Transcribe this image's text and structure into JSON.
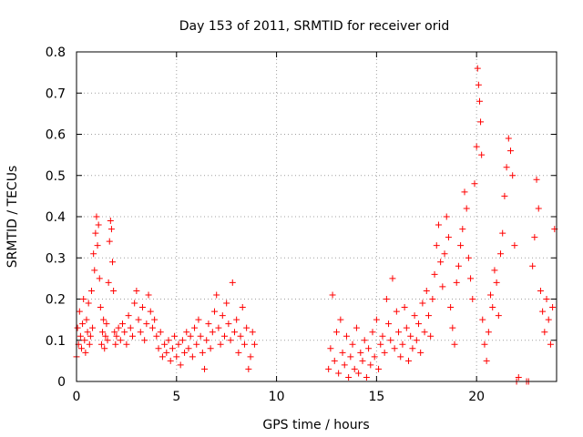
{
  "chart_data": {
    "type": "scatter",
    "title": "Day 153 of 2011, SRMTID for receiver orid",
    "xlabel": "GPS time / hours",
    "ylabel": "SRMTID / TECUs",
    "xlim": [
      0,
      24
    ],
    "ylim": [
      0,
      0.8
    ],
    "x_ticks": [
      0,
      5,
      10,
      15,
      20
    ],
    "y_ticks": [
      0,
      0.1,
      0.2,
      0.3,
      0.4,
      0.5,
      0.6,
      0.7,
      0.8
    ],
    "x_tick_labels": [
      "0",
      "5",
      "10",
      "15",
      "20"
    ],
    "y_tick_labels": [
      "0",
      "0.1",
      "0.2",
      "0.3",
      "0.4",
      "0.5",
      "0.6",
      "0.7",
      "0.8"
    ],
    "grid": true,
    "marker": "+",
    "color": "#ff0000",
    "series": [
      {
        "name": "SRMTID",
        "points": [
          [
            0.0,
            0.06
          ],
          [
            0.05,
            0.13
          ],
          [
            0.1,
            0.09
          ],
          [
            0.15,
            0.17
          ],
          [
            0.2,
            0.11
          ],
          [
            0.25,
            0.08
          ],
          [
            0.3,
            0.14
          ],
          [
            0.35,
            0.2
          ],
          [
            0.4,
            0.1
          ],
          [
            0.45,
            0.07
          ],
          [
            0.5,
            0.15
          ],
          [
            0.55,
            0.12
          ],
          [
            0.6,
            0.19
          ],
          [
            0.65,
            0.09
          ],
          [
            0.7,
            0.11
          ],
          [
            0.75,
            0.22
          ],
          [
            0.8,
            0.13
          ],
          [
            0.85,
            0.31
          ],
          [
            0.9,
            0.27
          ],
          [
            0.95,
            0.36
          ],
          [
            1.0,
            0.4
          ],
          [
            1.05,
            0.33
          ],
          [
            1.1,
            0.38
          ],
          [
            1.15,
            0.25
          ],
          [
            1.2,
            0.18
          ],
          [
            1.25,
            0.09
          ],
          [
            1.3,
            0.12
          ],
          [
            1.35,
            0.15
          ],
          [
            1.4,
            0.08
          ],
          [
            1.45,
            0.11
          ],
          [
            1.5,
            0.14
          ],
          [
            1.55,
            0.1
          ],
          [
            1.6,
            0.24
          ],
          [
            1.65,
            0.34
          ],
          [
            1.7,
            0.39
          ],
          [
            1.75,
            0.37
          ],
          [
            1.8,
            0.29
          ],
          [
            1.85,
            0.22
          ],
          [
            1.9,
            0.12
          ],
          [
            1.95,
            0.09
          ],
          [
            2.0,
            0.11
          ],
          [
            2.1,
            0.13
          ],
          [
            2.2,
            0.1
          ],
          [
            2.3,
            0.14
          ],
          [
            2.4,
            0.12
          ],
          [
            2.5,
            0.09
          ],
          [
            2.6,
            0.16
          ],
          [
            2.7,
            0.13
          ],
          [
            2.8,
            0.11
          ],
          [
            2.9,
            0.19
          ],
          [
            3.0,
            0.22
          ],
          [
            3.1,
            0.15
          ],
          [
            3.2,
            0.12
          ],
          [
            3.3,
            0.18
          ],
          [
            3.4,
            0.1
          ],
          [
            3.5,
            0.14
          ],
          [
            3.6,
            0.21
          ],
          [
            3.7,
            0.17
          ],
          [
            3.8,
            0.13
          ],
          [
            3.9,
            0.15
          ],
          [
            4.0,
            0.11
          ],
          [
            4.1,
            0.08
          ],
          [
            4.2,
            0.12
          ],
          [
            4.3,
            0.06
          ],
          [
            4.4,
            0.09
          ],
          [
            4.5,
            0.07
          ],
          [
            4.6,
            0.1
          ],
          [
            4.7,
            0.05
          ],
          [
            4.8,
            0.08
          ],
          [
            4.9,
            0.11
          ],
          [
            5.0,
            0.06
          ],
          [
            5.1,
            0.09
          ],
          [
            5.2,
            0.04
          ],
          [
            5.3,
            0.1
          ],
          [
            5.4,
            0.07
          ],
          [
            5.5,
            0.12
          ],
          [
            5.6,
            0.08
          ],
          [
            5.7,
            0.11
          ],
          [
            5.8,
            0.06
          ],
          [
            5.9,
            0.13
          ],
          [
            6.0,
            0.09
          ],
          [
            6.1,
            0.15
          ],
          [
            6.2,
            0.11
          ],
          [
            6.3,
            0.07
          ],
          [
            6.4,
            0.03
          ],
          [
            6.5,
            0.1
          ],
          [
            6.6,
            0.14
          ],
          [
            6.7,
            0.08
          ],
          [
            6.8,
            0.12
          ],
          [
            6.9,
            0.17
          ],
          [
            7.0,
            0.21
          ],
          [
            7.1,
            0.13
          ],
          [
            7.2,
            0.09
          ],
          [
            7.3,
            0.16
          ],
          [
            7.4,
            0.11
          ],
          [
            7.5,
            0.19
          ],
          [
            7.6,
            0.14
          ],
          [
            7.7,
            0.1
          ],
          [
            7.8,
            0.24
          ],
          [
            7.9,
            0.12
          ],
          [
            8.0,
            0.15
          ],
          [
            8.1,
            0.07
          ],
          [
            8.2,
            0.11
          ],
          [
            8.3,
            0.18
          ],
          [
            8.4,
            0.09
          ],
          [
            8.5,
            0.13
          ],
          [
            8.6,
            0.03
          ],
          [
            8.7,
            0.06
          ],
          [
            8.8,
            0.12
          ],
          [
            8.9,
            0.09
          ],
          [
            12.6,
            0.03
          ],
          [
            12.7,
            0.08
          ],
          [
            12.8,
            0.21
          ],
          [
            12.9,
            0.05
          ],
          [
            13.0,
            0.12
          ],
          [
            13.1,
            0.02
          ],
          [
            13.2,
            0.15
          ],
          [
            13.3,
            0.07
          ],
          [
            13.4,
            0.04
          ],
          [
            13.5,
            0.11
          ],
          [
            13.6,
            0.01
          ],
          [
            13.7,
            0.06
          ],
          [
            13.8,
            0.09
          ],
          [
            13.9,
            0.03
          ],
          [
            14.0,
            0.13
          ],
          [
            14.1,
            0.02
          ],
          [
            14.2,
            0.07
          ],
          [
            14.3,
            0.05
          ],
          [
            14.4,
            0.1
          ],
          [
            14.5,
            0.01
          ],
          [
            14.6,
            0.08
          ],
          [
            14.7,
            0.04
          ],
          [
            14.8,
            0.12
          ],
          [
            14.9,
            0.06
          ],
          [
            15.0,
            0.15
          ],
          [
            15.1,
            0.03
          ],
          [
            15.2,
            0.09
          ],
          [
            15.3,
            0.11
          ],
          [
            15.4,
            0.07
          ],
          [
            15.5,
            0.2
          ],
          [
            15.6,
            0.14
          ],
          [
            15.7,
            0.1
          ],
          [
            15.8,
            0.25
          ],
          [
            15.9,
            0.08
          ],
          [
            16.0,
            0.17
          ],
          [
            16.1,
            0.12
          ],
          [
            16.2,
            0.06
          ],
          [
            16.3,
            0.09
          ],
          [
            16.4,
            0.18
          ],
          [
            16.5,
            0.13
          ],
          [
            16.6,
            0.05
          ],
          [
            16.7,
            0.11
          ],
          [
            16.8,
            0.08
          ],
          [
            16.9,
            0.16
          ],
          [
            17.0,
            0.1
          ],
          [
            17.1,
            0.14
          ],
          [
            17.2,
            0.07
          ],
          [
            17.3,
            0.19
          ],
          [
            17.4,
            0.12
          ],
          [
            17.5,
            0.22
          ],
          [
            17.6,
            0.16
          ],
          [
            17.7,
            0.11
          ],
          [
            17.8,
            0.2
          ],
          [
            17.9,
            0.26
          ],
          [
            18.0,
            0.33
          ],
          [
            18.1,
            0.38
          ],
          [
            18.2,
            0.29
          ],
          [
            18.3,
            0.23
          ],
          [
            18.4,
            0.31
          ],
          [
            18.5,
            0.4
          ],
          [
            18.6,
            0.35
          ],
          [
            18.7,
            0.18
          ],
          [
            18.8,
            0.13
          ],
          [
            18.9,
            0.09
          ],
          [
            19.0,
            0.24
          ],
          [
            19.1,
            0.28
          ],
          [
            19.2,
            0.33
          ],
          [
            19.3,
            0.37
          ],
          [
            19.4,
            0.46
          ],
          [
            19.5,
            0.42
          ],
          [
            19.6,
            0.3
          ],
          [
            19.7,
            0.25
          ],
          [
            19.8,
            0.2
          ],
          [
            19.9,
            0.48
          ],
          [
            20.0,
            0.57
          ],
          [
            20.05,
            0.76
          ],
          [
            20.1,
            0.72
          ],
          [
            20.15,
            0.68
          ],
          [
            20.2,
            0.63
          ],
          [
            20.25,
            0.55
          ],
          [
            20.3,
            0.15
          ],
          [
            20.4,
            0.09
          ],
          [
            20.5,
            0.05
          ],
          [
            20.6,
            0.12
          ],
          [
            20.7,
            0.21
          ],
          [
            20.8,
            0.18
          ],
          [
            20.9,
            0.27
          ],
          [
            21.0,
            0.24
          ],
          [
            21.1,
            0.16
          ],
          [
            21.2,
            0.31
          ],
          [
            21.3,
            0.36
          ],
          [
            21.4,
            0.45
          ],
          [
            21.5,
            0.52
          ],
          [
            21.6,
            0.59
          ],
          [
            21.7,
            0.56
          ],
          [
            21.8,
            0.5
          ],
          [
            21.9,
            0.33
          ],
          [
            22.0,
            0.0
          ],
          [
            22.1,
            0.01
          ],
          [
            22.5,
            0.0
          ],
          [
            22.6,
            0.0
          ],
          [
            22.8,
            0.28
          ],
          [
            22.9,
            0.35
          ],
          [
            23.0,
            0.49
          ],
          [
            23.1,
            0.42
          ],
          [
            23.2,
            0.22
          ],
          [
            23.3,
            0.17
          ],
          [
            23.4,
            0.12
          ],
          [
            23.5,
            0.2
          ],
          [
            23.6,
            0.15
          ],
          [
            23.7,
            0.09
          ],
          [
            23.8,
            0.18
          ],
          [
            23.9,
            0.37
          ]
        ]
      }
    ]
  }
}
